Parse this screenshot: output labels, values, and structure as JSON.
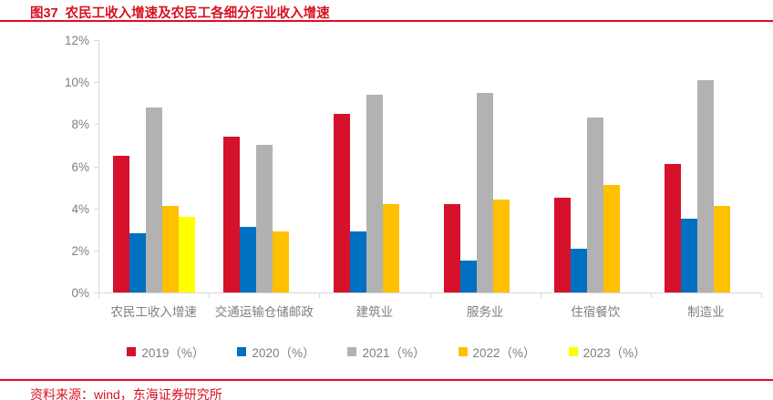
{
  "page": {
    "title": "图37  农民工收入增速及农民工各细分行业收入增速",
    "source": "资料来源：wind，东海证券研究所",
    "title_color": "#D9101F",
    "rule_color": "#E30B25",
    "axis_line_color": "#D9D9D9",
    "axis_text_color": "#7F7F7F"
  },
  "chart_data": {
    "type": "bar",
    "title": "图37 农民工收入增速及农民工各细分行业收入增速",
    "categories": [
      "农民工收入增速",
      "交通运输仓储邮政",
      "建筑业",
      "服务业",
      "住宿餐饮",
      "制造业"
    ],
    "series": [
      {
        "name": "2019（%）",
        "color": "#D5112B",
        "values": [
          6.5,
          7.4,
          8.5,
          4.2,
          4.5,
          6.1
        ]
      },
      {
        "name": "2020（%）",
        "color": "#0070C0",
        "values": [
          2.8,
          3.1,
          2.9,
          1.5,
          2.1,
          3.5
        ]
      },
      {
        "name": "2021（%）",
        "color": "#B2B2B2",
        "values": [
          8.8,
          7.0,
          9.4,
          9.5,
          8.3,
          10.1
        ]
      },
      {
        "name": "2022（%）",
        "color": "#FFC000",
        "values": [
          4.1,
          2.9,
          4.2,
          4.4,
          5.1,
          4.1
        ]
      },
      {
        "name": "2023（%）",
        "color": "#FFFF00",
        "values": [
          3.6,
          null,
          null,
          null,
          null,
          null
        ]
      }
    ],
    "ylim": [
      0,
      12
    ],
    "ytick_step": 2,
    "ytick_labels": [
      "0%",
      "2%",
      "4%",
      "6%",
      "8%",
      "10%",
      "12%"
    ],
    "xlabel": "",
    "ylabel": "",
    "grid": false,
    "legend_position": "bottom"
  }
}
